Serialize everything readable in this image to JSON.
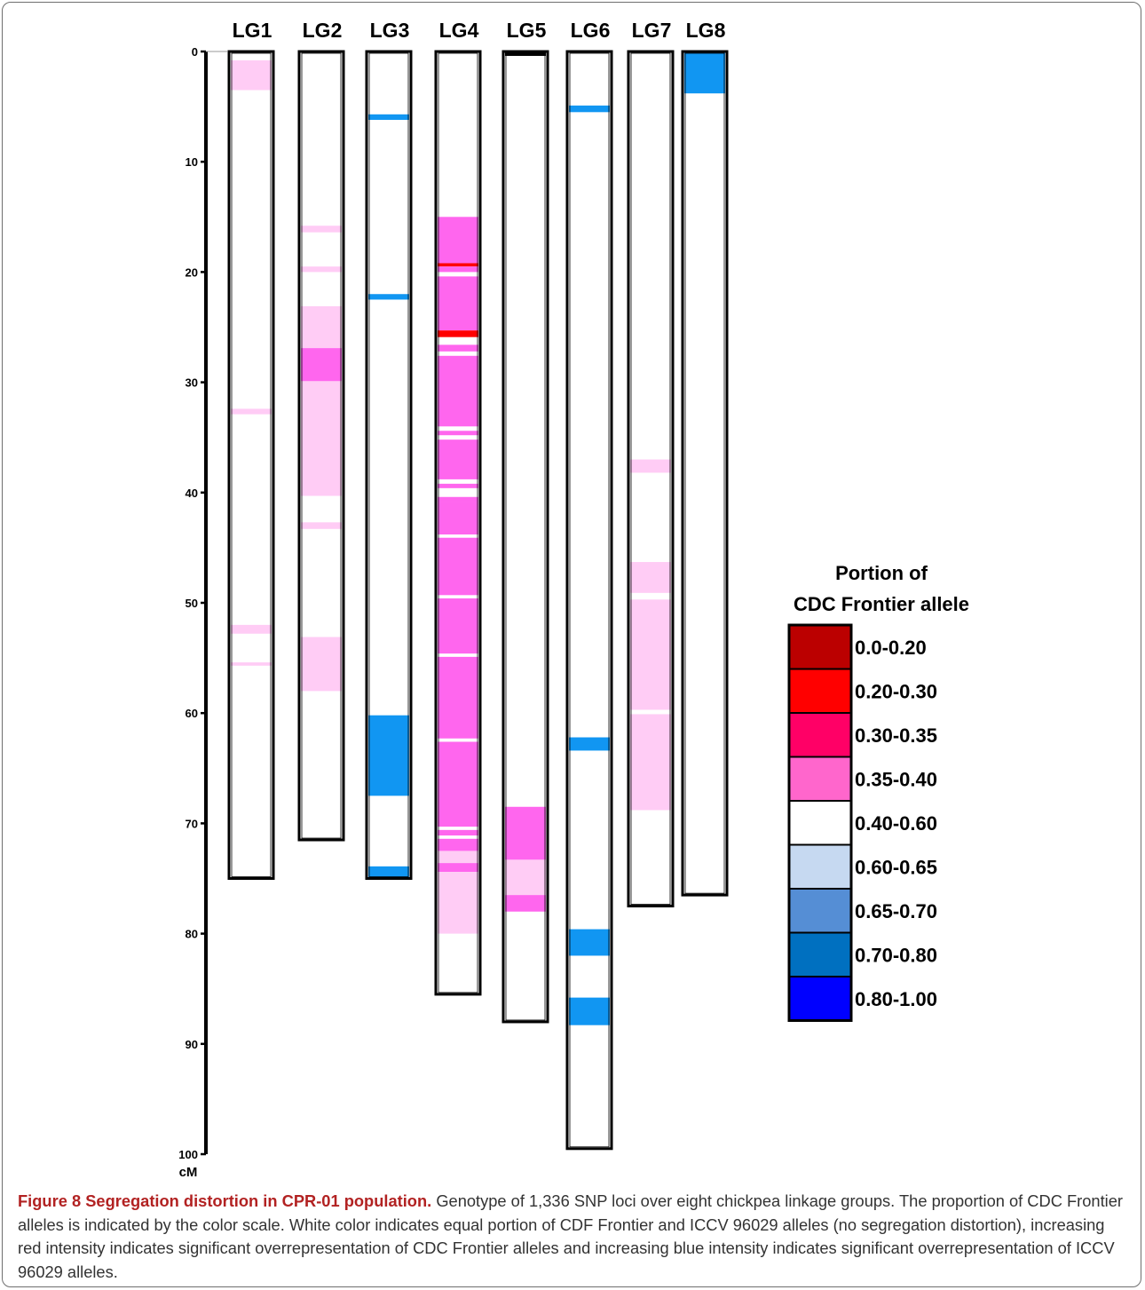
{
  "figure": {
    "linkage_groups": [
      {
        "name": "LG1",
        "length": 75,
        "bands": [
          {
            "start": 0.8,
            "end": 3.5,
            "color": "#ffccf5"
          },
          {
            "start": 32.4,
            "end": 32.9,
            "color": "#ffccf5"
          },
          {
            "start": 52.0,
            "end": 52.8,
            "color": "#ffccf5"
          },
          {
            "start": 55.4,
            "end": 55.7,
            "color": "#ffccf5"
          }
        ]
      },
      {
        "name": "LG2",
        "length": 71.5,
        "bands": [
          {
            "start": 15.8,
            "end": 16.4,
            "color": "#ffccf5"
          },
          {
            "start": 19.5,
            "end": 20.0,
            "color": "#ffccf5"
          },
          {
            "start": 23.1,
            "end": 26.9,
            "color": "#ffccf5"
          },
          {
            "start": 26.9,
            "end": 29.9,
            "color": "#ff66ee"
          },
          {
            "start": 29.9,
            "end": 40.3,
            "color": "#ffccf5"
          },
          {
            "start": 42.7,
            "end": 43.3,
            "color": "#ffccf5"
          },
          {
            "start": 53.1,
            "end": 58.0,
            "color": "#ffccf5"
          }
        ]
      },
      {
        "name": "LG3",
        "length": 75,
        "bands": [
          {
            "start": 5.7,
            "end": 6.2,
            "color": "#1196f2"
          },
          {
            "start": 22.0,
            "end": 22.5,
            "color": "#1196f2"
          },
          {
            "start": 60.2,
            "end": 67.5,
            "color": "#1196f2"
          },
          {
            "start": 73.9,
            "end": 75.0,
            "color": "#1196f2"
          }
        ]
      },
      {
        "name": "LG4",
        "length": 85.5,
        "bands": [
          {
            "start": 15.0,
            "end": 19.2,
            "color": "#ff66ee"
          },
          {
            "start": 19.2,
            "end": 19.5,
            "color": "#ff0000"
          },
          {
            "start": 19.5,
            "end": 20.0,
            "color": "#ff66ee"
          },
          {
            "start": 20.4,
            "end": 25.3,
            "color": "#ff66ee"
          },
          {
            "start": 25.3,
            "end": 25.9,
            "color": "#ff0000"
          },
          {
            "start": 26.6,
            "end": 27.2,
            "color": "#ff66ee"
          },
          {
            "start": 27.6,
            "end": 34.0,
            "color": "#ff66ee"
          },
          {
            "start": 34.4,
            "end": 34.8,
            "color": "#ff66ee"
          },
          {
            "start": 35.2,
            "end": 38.8,
            "color": "#ff66ee"
          },
          {
            "start": 39.2,
            "end": 39.6,
            "color": "#ff66ee"
          },
          {
            "start": 40.4,
            "end": 40.9,
            "color": "#ff66ee"
          },
          {
            "start": 40.9,
            "end": 43.8,
            "color": "#ff66ee"
          },
          {
            "start": 44.1,
            "end": 49.3,
            "color": "#ff66ee"
          },
          {
            "start": 49.6,
            "end": 54.6,
            "color": "#ff66ee"
          },
          {
            "start": 54.9,
            "end": 62.3,
            "color": "#ff66ee"
          },
          {
            "start": 62.6,
            "end": 70.3,
            "color": "#ff66ee"
          },
          {
            "start": 70.6,
            "end": 71.1,
            "color": "#ff66ee"
          },
          {
            "start": 71.4,
            "end": 72.5,
            "color": "#ff66ee"
          },
          {
            "start": 72.5,
            "end": 73.6,
            "color": "#ffccf5"
          },
          {
            "start": 73.6,
            "end": 74.4,
            "color": "#ff66ee"
          },
          {
            "start": 74.4,
            "end": 80.0,
            "color": "#ffccf5"
          }
        ]
      },
      {
        "name": "LG5",
        "length": 88,
        "bands": [
          {
            "start": 0.0,
            "end": 0.4,
            "color": "#000000"
          },
          {
            "start": 68.5,
            "end": 73.3,
            "color": "#ff66ee"
          },
          {
            "start": 73.3,
            "end": 76.5,
            "color": "#ffccf5"
          },
          {
            "start": 76.5,
            "end": 78.0,
            "color": "#ff66ee"
          }
        ]
      },
      {
        "name": "LG6",
        "length": 99.5,
        "bands": [
          {
            "start": 4.9,
            "end": 5.5,
            "color": "#1196f2"
          },
          {
            "start": 62.2,
            "end": 63.4,
            "color": "#1196f2"
          },
          {
            "start": 79.6,
            "end": 82.0,
            "color": "#1196f2"
          },
          {
            "start": 85.8,
            "end": 88.3,
            "color": "#1196f2"
          }
        ]
      },
      {
        "name": "LG7",
        "length": 77.5,
        "bands": [
          {
            "start": 37.0,
            "end": 38.2,
            "color": "#ffccf5"
          },
          {
            "start": 46.3,
            "end": 49.1,
            "color": "#ffccf5"
          },
          {
            "start": 49.7,
            "end": 59.7,
            "color": "#ffccf5"
          },
          {
            "start": 60.1,
            "end": 68.8,
            "color": "#ffccf5"
          }
        ]
      },
      {
        "name": "LG8",
        "length": 76.5,
        "bands": [
          {
            "start": 0.0,
            "end": 3.8,
            "color": "#1196f2"
          }
        ]
      }
    ],
    "axis": {
      "ticks": [
        0,
        10,
        20,
        30,
        40,
        50,
        60,
        70,
        80,
        90,
        100
      ],
      "tick_labels": [
        "0",
        "10",
        "20",
        "30",
        "40",
        "50",
        "60",
        "70",
        "80",
        "90",
        "100"
      ],
      "unit": "cM",
      "range": [
        0,
        100
      ]
    },
    "legend": {
      "title_line1": "Portion of",
      "title_line2": "CDC Frontier allele",
      "items": [
        {
          "label": "0.0-0.20",
          "color": "#bb0000"
        },
        {
          "label": "0.20-0.30",
          "color": "#ff0000"
        },
        {
          "label": "0.30-0.35",
          "color": "#ff0066"
        },
        {
          "label": "0.35-0.40",
          "color": "#ff66cc"
        },
        {
          "label": "0.40-0.60",
          "color": "#ffffff"
        },
        {
          "label": "0.60-0.65",
          "color": "#c6d9f1"
        },
        {
          "label": "0.65-0.70",
          "color": "#558ed5"
        },
        {
          "label": "0.70-0.80",
          "color": "#0070c0"
        },
        {
          "label": "0.80-1.00",
          "color": "#0000ff"
        }
      ]
    }
  },
  "caption": {
    "label": "Figure 8",
    "title": "Segregation distortion in CPR-01 population.",
    "body": "Genotype of 1,336 SNP loci over eight chickpea linkage groups. The proportion of CDC Frontier alleles is indicated by the color scale. White color indicates equal portion of CDF Frontier and ICCV 96029 alleles (no segregation distortion), increasing red intensity indicates significant overrepresentation of CDC Frontier alleles and increasing blue intensity indicates significant overrepresentation of ICCV 96029 alleles."
  }
}
